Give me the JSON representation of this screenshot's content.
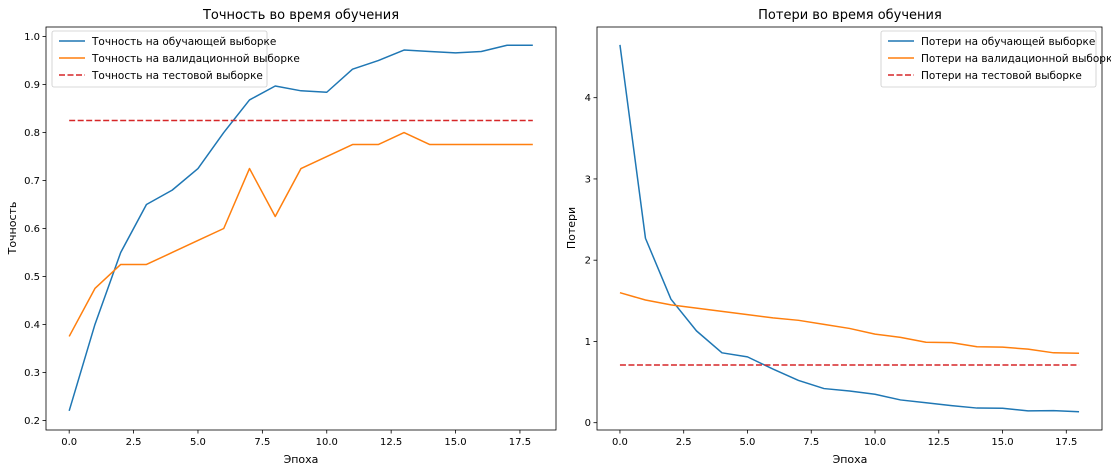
{
  "chart_data": [
    {
      "type": "line",
      "title": "Точность во время обучения",
      "xlabel": "Эпоха",
      "ylabel": "Точность",
      "xlim": [
        -0.9,
        18.9
      ],
      "ylim": [
        0.18,
        1.02
      ],
      "xticks": [
        0.0,
        2.5,
        5.0,
        7.5,
        10.0,
        12.5,
        15.0,
        17.5
      ],
      "xtick_labels": [
        "0.0",
        "2.5",
        "5.0",
        "7.5",
        "10.0",
        "12.5",
        "15.0",
        "17.5"
      ],
      "yticks": [
        0.2,
        0.3,
        0.4,
        0.5,
        0.6,
        0.7,
        0.8,
        0.9,
        1.0
      ],
      "ytick_labels": [
        "0.2",
        "0.3",
        "0.4",
        "0.5",
        "0.6",
        "0.7",
        "0.8",
        "0.9",
        "1.0"
      ],
      "grid": false,
      "legend_position": "top-left",
      "x": [
        0,
        1,
        2,
        3,
        4,
        5,
        6,
        7,
        8,
        9,
        10,
        11,
        12,
        13,
        14,
        15,
        16,
        17,
        18
      ],
      "series": [
        {
          "name": "Точность на обучающей выборке",
          "color": "#1f77b4",
          "style": "solid",
          "values": [
            0.22,
            0.4,
            0.55,
            0.65,
            0.68,
            0.725,
            0.8,
            0.868,
            0.897,
            0.887,
            0.884,
            0.932,
            0.95,
            0.972,
            0.969,
            0.966,
            0.969,
            0.982,
            0.982
          ]
        },
        {
          "name": "Точность на валидационной выборке",
          "color": "#ff7f0e",
          "style": "solid",
          "values": [
            0.375,
            0.475,
            0.525,
            0.525,
            0.55,
            0.575,
            0.6,
            0.725,
            0.625,
            0.725,
            0.75,
            0.775,
            0.775,
            0.8,
            0.775,
            0.775,
            0.775,
            0.775,
            0.775
          ]
        },
        {
          "name": "Точность на тестовой выборке",
          "color": "#d62728",
          "style": "dashed",
          "values": [
            0.825,
            0.825,
            0.825,
            0.825,
            0.825,
            0.825,
            0.825,
            0.825,
            0.825,
            0.825,
            0.825,
            0.825,
            0.825,
            0.825,
            0.825,
            0.825,
            0.825,
            0.825,
            0.825
          ]
        }
      ]
    },
    {
      "type": "line",
      "title": "Потери во время обучения",
      "xlabel": "Эпоха",
      "ylabel": "Потери",
      "xlim": [
        -0.9,
        18.9
      ],
      "ylim": [
        -0.09,
        4.87
      ],
      "xticks": [
        0.0,
        2.5,
        5.0,
        7.5,
        10.0,
        12.5,
        15.0,
        17.5
      ],
      "xtick_labels": [
        "0.0",
        "2.5",
        "5.0",
        "7.5",
        "10.0",
        "12.5",
        "15.0",
        "17.5"
      ],
      "yticks": [
        0,
        1,
        2,
        3,
        4
      ],
      "ytick_labels": [
        "0",
        "1",
        "2",
        "3",
        "4"
      ],
      "grid": false,
      "legend_position": "top-right",
      "x": [
        0,
        1,
        2,
        3,
        4,
        5,
        6,
        7,
        8,
        9,
        10,
        11,
        12,
        13,
        14,
        15,
        16,
        17,
        18
      ],
      "series": [
        {
          "name": "Потери на обучающей выборке",
          "color": "#1f77b4",
          "style": "solid",
          "values": [
            4.65,
            2.27,
            1.52,
            1.13,
            0.86,
            0.81,
            0.66,
            0.52,
            0.42,
            0.39,
            0.35,
            0.28,
            0.245,
            0.21,
            0.18,
            0.178,
            0.145,
            0.148,
            0.135
          ]
        },
        {
          "name": "Потери на валидационной выборке",
          "color": "#ff7f0e",
          "style": "solid",
          "values": [
            1.6,
            1.51,
            1.45,
            1.41,
            1.37,
            1.33,
            1.29,
            1.26,
            1.21,
            1.16,
            1.09,
            1.05,
            0.99,
            0.985,
            0.935,
            0.93,
            0.905,
            0.86,
            0.855
          ]
        },
        {
          "name": "Потери на тестовой выборке",
          "color": "#d62728",
          "style": "dashed",
          "values": [
            0.71,
            0.71,
            0.71,
            0.71,
            0.71,
            0.71,
            0.71,
            0.71,
            0.71,
            0.71,
            0.71,
            0.71,
            0.71,
            0.71,
            0.71,
            0.71,
            0.71,
            0.71,
            0.71
          ]
        }
      ]
    }
  ]
}
